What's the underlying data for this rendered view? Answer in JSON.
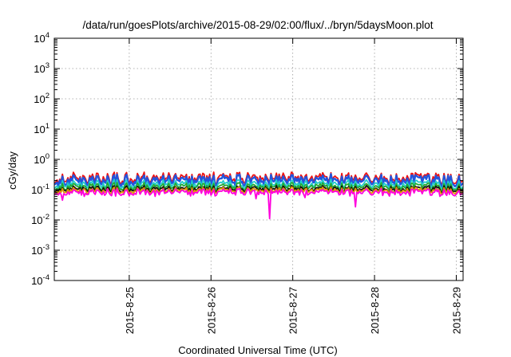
{
  "chart_data": {
    "type": "line",
    "title": "/data/run/goesPlots/archive/2015-08-29/02:00/flux/../bryn/5daysMoon.plot",
    "xlabel": "Coordinated Universal Time (UTC)",
    "ylabel": "cGy/day",
    "y_scale": "log",
    "ylim": [
      0.0001,
      10000
    ],
    "y_ticks": [
      {
        "value": 0.0001,
        "base": "10",
        "exp": "-4"
      },
      {
        "value": 0.001,
        "base": "10",
        "exp": "-3"
      },
      {
        "value": 0.01,
        "base": "10",
        "exp": "-2"
      },
      {
        "value": 0.1,
        "base": "10",
        "exp": "-1"
      },
      {
        "value": 1,
        "base": "10",
        "exp": "0"
      },
      {
        "value": 10,
        "base": "10",
        "exp": "1"
      },
      {
        "value": 100,
        "base": "10",
        "exp": "2"
      },
      {
        "value": 1000,
        "base": "10",
        "exp": "3"
      },
      {
        "value": 10000,
        "base": "10",
        "exp": "4"
      }
    ],
    "xlim": [
      "2015-08-24 02:00",
      "2015-08-29 02:00"
    ],
    "x_ticks": [
      "2015-8-25",
      "2015-8-26",
      "2015-8-27",
      "2015-8-28",
      "2015-8-29"
    ],
    "grid": true,
    "legend": "none",
    "series": [
      {
        "color": "#ee1111",
        "base": 0.24,
        "amplitude": 0.38,
        "spikes": []
      },
      {
        "color": "#2255dd",
        "base": 0.2,
        "amplitude": 0.38,
        "spikes": []
      },
      {
        "color": "#22cccc",
        "base": 0.15,
        "amplitude": 0.3,
        "spikes": []
      },
      {
        "color": "#22aa33",
        "base": 0.125,
        "amplitude": 0.25,
        "spikes": []
      },
      {
        "color": "#111111",
        "base": 0.105,
        "amplitude": 0.2,
        "spikes": []
      },
      {
        "color": "#dd9900",
        "base": 0.093,
        "amplitude": 0.2,
        "spikes": []
      },
      {
        "color": "#ff00dd",
        "base": 0.082,
        "amplitude": 0.22,
        "spikes": [
          {
            "day": 0.1,
            "value": 0.045
          },
          {
            "day": 0.36,
            "value": 0.06
          },
          {
            "day": 0.61,
            "value": 0.065
          },
          {
            "day": 1.24,
            "value": 0.06
          },
          {
            "day": 2.46,
            "value": 0.05
          },
          {
            "day": 2.64,
            "value": 0.011
          },
          {
            "day": 3.06,
            "value": 0.055
          },
          {
            "day": 3.68,
            "value": 0.027
          },
          {
            "day": 4.24,
            "value": 0.065
          },
          {
            "day": 4.72,
            "value": 0.06
          }
        ]
      }
    ]
  }
}
